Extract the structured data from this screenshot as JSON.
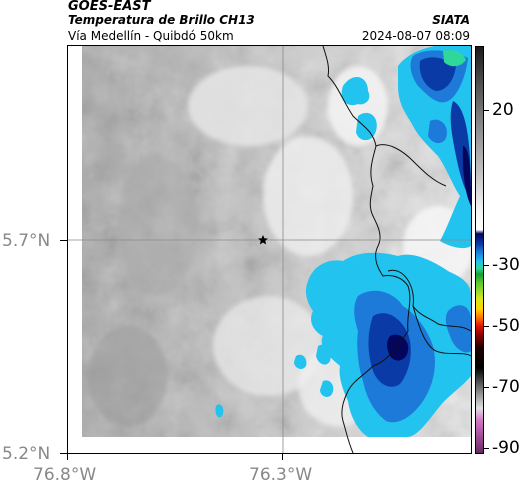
{
  "header": {
    "source": "GOES-EAST",
    "product": "Temperatura de Brillo CH13",
    "region": "Vía Medellín - Quibdó 50km",
    "org": "SIATA",
    "datetime": "2024-08-07 08:09"
  },
  "axes": {
    "lat_labels": [
      "5.7°N",
      "5.2°N"
    ],
    "lon_labels": [
      "76.8°W",
      "76.3°W"
    ]
  },
  "colorbar": {
    "tick_labels": [
      "20",
      "-30",
      "-50",
      "-70",
      "-90"
    ]
  },
  "colors": {
    "cold_cloud": "#0a3aa5",
    "cyan": "#22c3ee",
    "coast": "#111111"
  },
  "marker": {
    "icon": "star-icon"
  }
}
